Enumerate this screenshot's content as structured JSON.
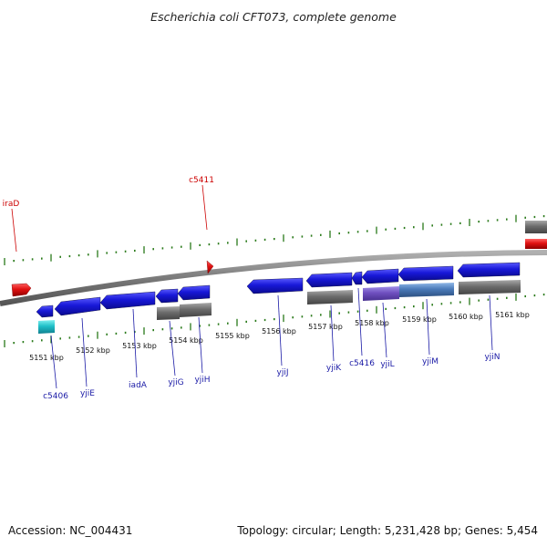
{
  "header": {
    "title": "Escherichia coli CFT073, complete genome"
  },
  "footer": {
    "accession": "Accession: NC_004431",
    "topology": "Topology: circular; Length: 5,231,428 bp; Genes: 5,454"
  },
  "kbp_labels": [
    "5151 kbp",
    "5152 kbp",
    "5153 kbp",
    "5154 kbp",
    "5155 kbp",
    "5156 kbp",
    "5157 kbp",
    "5158 kbp",
    "5159 kbp",
    "5160 kbp",
    "5161 kbp"
  ],
  "gene_labels": [
    "c5406",
    "yjiE",
    "iadA",
    "yjiG",
    "yjiH",
    "yjiJ",
    "yjiK",
    "c5416",
    "yjiL",
    "yjiM",
    "yjiN"
  ],
  "red_labels": [
    "iraD",
    "c5411"
  ],
  "colors": {
    "backbone": "#8c8c8c",
    "tick": "#2a7a1a",
    "gene_blue": "#1818d8",
    "gene_grey": "#6c6c6c",
    "gene_red": "#e01010",
    "gene_cyan": "#20c0c8",
    "gene_purple": "#7050c0",
    "gene_steel": "#4a7ab8",
    "label_blue": "#1a1aa6",
    "label_red": "#cc0000"
  }
}
